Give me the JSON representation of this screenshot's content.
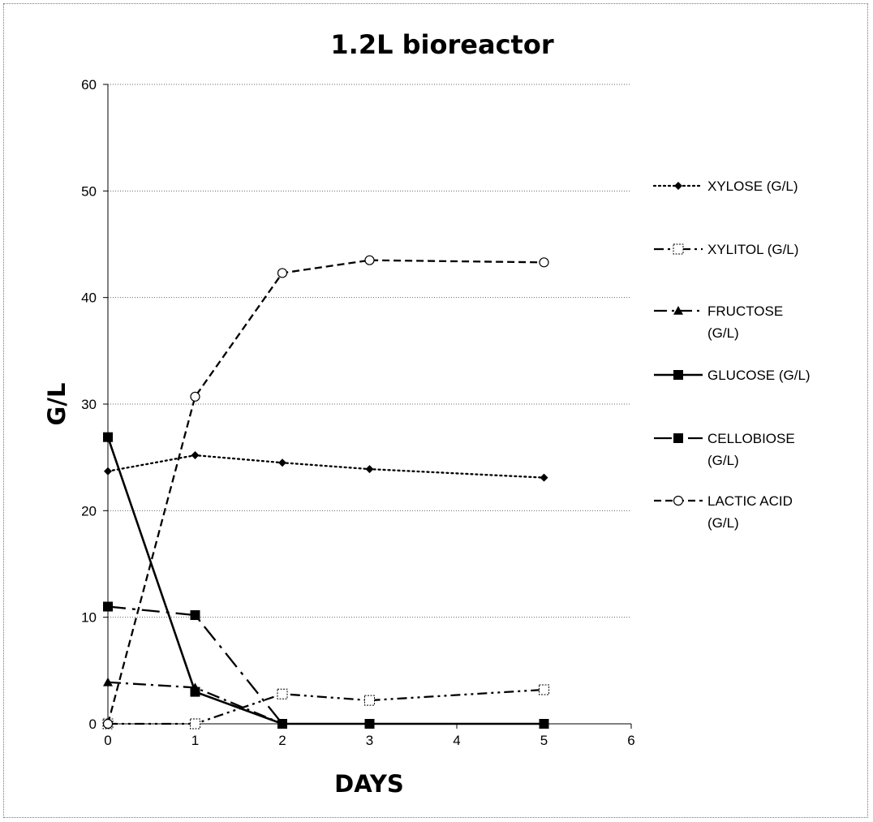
{
  "chart_data": {
    "type": "line",
    "title": "1.2L bioreactor",
    "xlabel": "DAYS",
    "ylabel": "G/L",
    "xlim": [
      0,
      6
    ],
    "ylim": [
      0,
      60
    ],
    "xticks": [
      "0",
      "1",
      "2",
      "3",
      "4",
      "5",
      "6"
    ],
    "yticks": [
      "0",
      "10",
      "20",
      "30",
      "40",
      "50",
      "60"
    ],
    "grid": "horizontal",
    "legend_position": "right",
    "series": [
      {
        "name": "XYLOSE (G/L)",
        "name_lines": [
          "XYLOSE (G/L)"
        ],
        "dash": "dotted",
        "marker": "diamond",
        "x": [
          0,
          1,
          2,
          3,
          5
        ],
        "y": [
          23.7,
          25.2,
          24.5,
          23.9,
          23.1
        ]
      },
      {
        "name": "XYLITOL (G/L)",
        "name_lines": [
          "XYLITOL (G/L)"
        ],
        "dash": "dash-dot-dot",
        "marker": "open-square",
        "x": [
          0,
          1,
          2,
          3,
          5
        ],
        "y": [
          0,
          0,
          2.8,
          2.2,
          3.2
        ]
      },
      {
        "name": "FRUCTOSE (G/L)",
        "name_lines": [
          "FRUCTOSE",
          "(G/L)"
        ],
        "dash": "dash-dot",
        "marker": "triangle",
        "x": [
          0,
          1,
          2
        ],
        "y": [
          3.9,
          3.4,
          0
        ]
      },
      {
        "name": "GLUCOSE (G/L)",
        "name_lines": [
          "GLUCOSE (G/L)"
        ],
        "dash": "solid",
        "marker": "square",
        "x": [
          0,
          1,
          2,
          3,
          5
        ],
        "y": [
          26.9,
          3.0,
          0,
          0,
          0
        ]
      },
      {
        "name": "CELLOBIOSE (G/L)",
        "name_lines": [
          "CELLOBIOSE",
          "(G/L)"
        ],
        "dash": "long-dash-dot",
        "marker": "square",
        "x": [
          0,
          1,
          2
        ],
        "y": [
          11.0,
          10.2,
          0
        ]
      },
      {
        "name": "LACTIC ACID (G/L)",
        "name_lines": [
          "LACTIC ACID",
          "(G/L)"
        ],
        "dash": "dashed",
        "marker": "open-circle",
        "x": [
          0,
          1,
          2,
          3,
          5
        ],
        "y": [
          0,
          30.7,
          42.3,
          43.5,
          43.3
        ]
      }
    ]
  }
}
